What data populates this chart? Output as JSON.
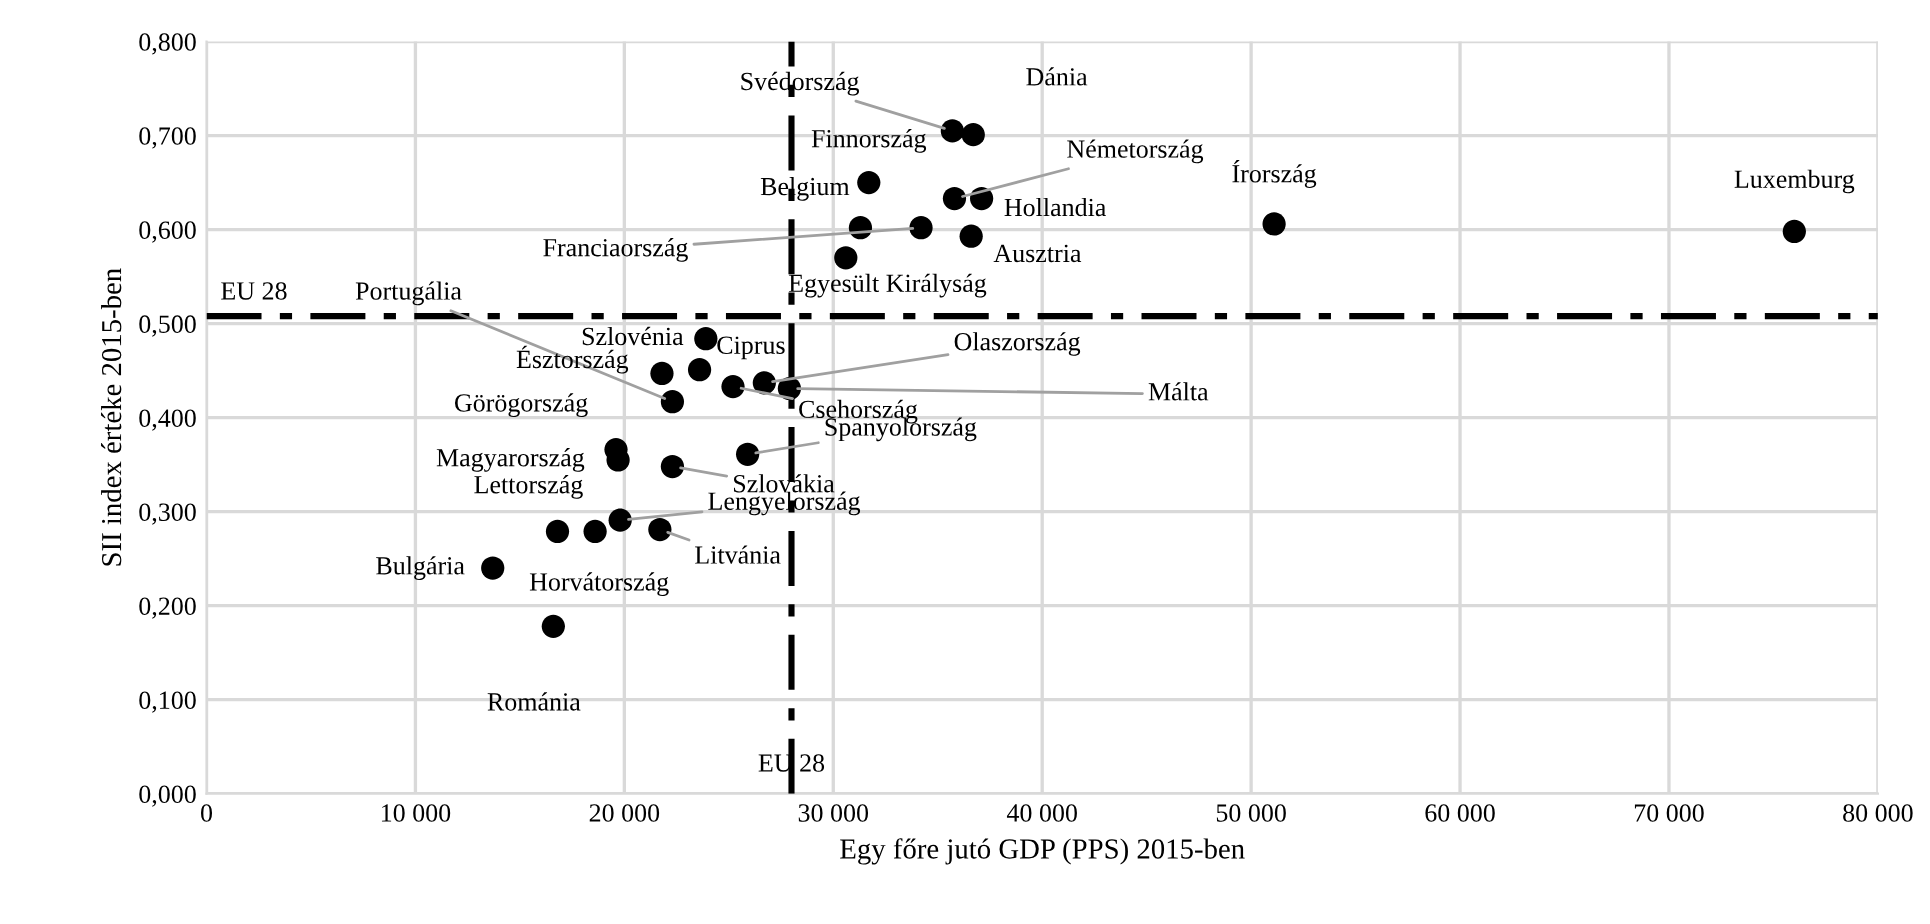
{
  "chart_data": {
    "type": "scatter",
    "xlabel": "Egy főre jutó GDP (PPS) 2015-ben",
    "ylabel": "SII index értéke 2015-ben",
    "x": [
      76000.0,
      51100.0,
      35700.0,
      36700.0,
      31700.0,
      35800.0,
      37100.0,
      31300.0,
      34200.0,
      36600.0,
      30600.0,
      23900.0,
      22300.0,
      21800.0,
      23600.0,
      26700.0,
      25200.0,
      27900.0,
      25900.0,
      19600.0,
      19700.0,
      22300.0,
      18600.0,
      16800.0,
      19800.0,
      21700.0,
      13700.0,
      16600.0
    ],
    "values": [
      0.598,
      0.606,
      0.705,
      0.701,
      0.65,
      0.633,
      0.633,
      0.602,
      0.602,
      0.593,
      0.57,
      0.484,
      0.417,
      0.447,
      0.451,
      0.437,
      0.433,
      0.431,
      0.361,
      0.366,
      0.355,
      0.348,
      0.279,
      0.279,
      0.291,
      0.281,
      0.24,
      0.178
    ],
    "value_labels": [
      "Luxemburg",
      "Írország",
      "Svédország",
      "Dánia",
      "Finnország",
      "Németország",
      "Hollandia",
      "Belgium",
      "Franciaország",
      "Ausztria",
      "Egyesült Királyság",
      "Szlovénia",
      "Portugália",
      "Észtország",
      "Ciprus",
      "Olaszország",
      "Csehország",
      "Málta",
      "Spanyolország",
      "Görögország",
      "Magyarország",
      "Szlovákia",
      "Lettország",
      "Horvátország",
      "Lengyelország",
      "Litvánia",
      "Bulgária",
      "Románia"
    ],
    "color": "#000000",
    "marker": "circle",
    "xlim": [
      0,
      80000
    ],
    "xticks": [
      0,
      {
        "value": 10000,
        "label": "10 000"
      },
      {
        "value": 20000,
        "label": "20 000"
      },
      {
        "value": 30000,
        "label": "30 000"
      },
      {
        "value": 40000,
        "label": "40 000"
      },
      {
        "value": 50000,
        "label": "50 000"
      },
      {
        "value": 60000,
        "label": "60 000"
      },
      {
        "value": 70000,
        "label": "70 000"
      },
      {
        "value": 80000,
        "label": "80 000"
      }
    ],
    "ylim": [
      0,
      0.8
    ],
    "yticks": [
      {
        "value": 0,
        "label": "0,000"
      },
      {
        "value": 0.1,
        "label": "0,100"
      },
      {
        "value": 0.2,
        "label": "0,200"
      },
      {
        "value": 0.3,
        "label": "0,300"
      },
      {
        "value": 0.4,
        "label": "0,400"
      },
      {
        "value": 0.5,
        "label": "0,500"
      },
      {
        "value": 0.6,
        "label": "0,600"
      },
      {
        "value": 0.7,
        "label": "0,700"
      },
      {
        "value": 0.8,
        "label": "0,800"
      }
    ],
    "grid": true,
    "ref_lines": [
      {
        "axis": "y",
        "value": 0.508,
        "label": "EU 28",
        "color": "#000000",
        "line_style": "dashdot"
      },
      {
        "axis": "x",
        "value": 28000,
        "label": "EU 28",
        "color": "#000000",
        "line_style": "dashdot"
      }
    ]
  }
}
